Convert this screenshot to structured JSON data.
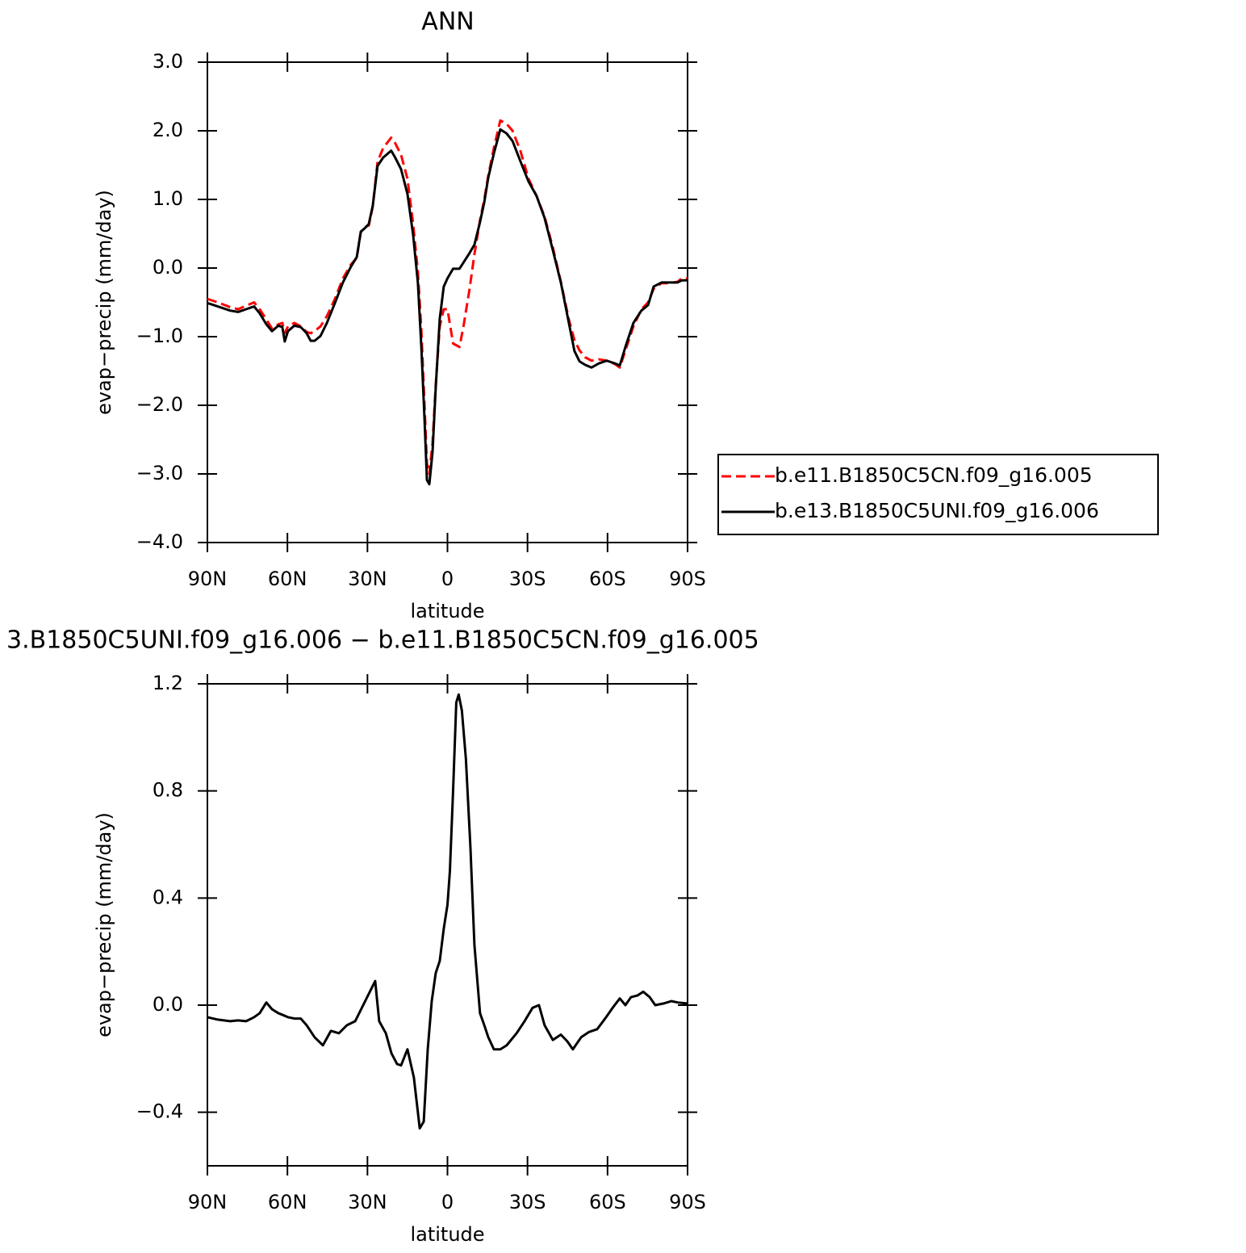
{
  "chart_data": [
    {
      "type": "line",
      "title": "ANN",
      "xlabel": "latitude",
      "ylabel": "evap−precip (mm/day)",
      "x": [
        90,
        86.1,
        81.5,
        78.5,
        75.5,
        72.5,
        70.4,
        67.9,
        65.8,
        63.4,
        61.9,
        61.0,
        59.8,
        57.4,
        55.0,
        52.8,
        51.3,
        49.8,
        47.6,
        45.2,
        42.2,
        39.2,
        36.2,
        34.0,
        32.5,
        31.0,
        29.5,
        28.0,
        26.2,
        24.1,
        21.1,
        19.6,
        17.4,
        15.0,
        12.9,
        11.1,
        9.8,
        8.6,
        7.7,
        6.8,
        5.6,
        4.4,
        2.9,
        1.4,
        0,
        -2.1,
        -4.5,
        -6.0,
        -8.3,
        -10.1,
        -12.2,
        -13.8,
        -15.3,
        -17.4,
        -19.8,
        -22.2,
        -24.4,
        -27.4,
        -30.4,
        -33.4,
        -36.4,
        -39.5,
        -42.5,
        -45.5,
        -47.6,
        -49.5,
        -51.6,
        -54.0,
        -56.7,
        -59.7,
        -62.8,
        -64.6,
        -66.7,
        -69.7,
        -72.7,
        -75.2,
        -77.3,
        -80.3,
        -83.3,
        -86.3,
        -87.8,
        -90
      ],
      "series": [
        {
          "name": "b.e11.B1850C5CN.f09_g16.005",
          "color": "#ff0000",
          "dash": "dashed",
          "values": [
            -0.45,
            -0.5,
            -0.57,
            -0.6,
            -0.55,
            -0.5,
            -0.6,
            -0.75,
            -0.88,
            -0.82,
            -0.8,
            -0.95,
            -0.85,
            -0.8,
            -0.85,
            -0.93,
            -0.95,
            -0.92,
            -0.85,
            -0.7,
            -0.45,
            -0.15,
            0.05,
            0.15,
            0.52,
            0.6,
            0.62,
            0.9,
            1.55,
            1.75,
            1.9,
            1.82,
            1.65,
            1.3,
            0.65,
            -0.05,
            -0.9,
            -2.0,
            -2.85,
            -3.0,
            -2.55,
            -1.7,
            -0.85,
            -0.6,
            -0.6,
            -1.1,
            -1.15,
            -0.85,
            -0.3,
            0.2,
            0.7,
            1.0,
            1.35,
            1.75,
            2.15,
            2.1,
            2.0,
            1.7,
            1.3,
            1.05,
            0.75,
            0.3,
            -0.2,
            -0.75,
            -1.05,
            -1.2,
            -1.3,
            -1.35,
            -1.33,
            -1.35,
            -1.4,
            -1.45,
            -1.2,
            -0.85,
            -0.6,
            -0.5,
            -0.3,
            -0.22,
            -0.22,
            -0.2,
            -0.15,
            -0.15
          ]
        },
        {
          "name": "b.e13.B1850C5UNI.f09_g16.006",
          "color": "#000000",
          "dash": "solid",
          "values": [
            -0.51,
            -0.56,
            -0.62,
            -0.64,
            -0.6,
            -0.56,
            -0.66,
            -0.82,
            -0.92,
            -0.84,
            -0.86,
            -1.07,
            -0.92,
            -0.84,
            -0.86,
            -0.95,
            -1.06,
            -1.06,
            -0.99,
            -0.8,
            -0.51,
            -0.21,
            0.02,
            0.16,
            0.53,
            0.58,
            0.64,
            0.91,
            1.49,
            1.61,
            1.71,
            1.61,
            1.44,
            1.08,
            0.49,
            -0.21,
            -1.15,
            -2.21,
            -3.09,
            -3.15,
            -2.68,
            -1.74,
            -0.74,
            -0.27,
            -0.15,
            -0.01,
            -0.01,
            0.08,
            0.22,
            0.34,
            0.67,
            0.96,
            1.32,
            1.67,
            2.02,
            1.96,
            1.85,
            1.55,
            1.26,
            1.05,
            0.73,
            0.26,
            -0.21,
            -0.8,
            -1.21,
            -1.36,
            -1.41,
            -1.45,
            -1.39,
            -1.35,
            -1.39,
            -1.42,
            -1.15,
            -0.8,
            -0.62,
            -0.54,
            -0.27,
            -0.21,
            -0.21,
            -0.21,
            -0.18,
            -0.18
          ]
        }
      ],
      "xlim": [
        90,
        -90
      ],
      "xticks": [
        {
          "value": 90,
          "label": "90N"
        },
        {
          "value": 60,
          "label": "60N"
        },
        {
          "value": 30,
          "label": "30N"
        },
        0,
        {
          "value": -30,
          "label": "30S"
        },
        {
          "value": -60,
          "label": "60S"
        },
        {
          "value": -90,
          "label": "90S"
        }
      ],
      "ylim": [
        -4,
        3
      ],
      "yticks": [
        {
          "value": 3,
          "label": "3.0"
        },
        {
          "value": 2,
          "label": "2.0"
        },
        {
          "value": 1,
          "label": "1.0"
        },
        {
          "value": 0,
          "label": "0.0"
        },
        {
          "value": -1,
          "label": "−1.0"
        },
        {
          "value": -2,
          "label": "−2.0"
        },
        {
          "value": -3,
          "label": "−3.0"
        },
        {
          "value": -4,
          "label": "−4.0"
        }
      ],
      "legend": "right"
    },
    {
      "type": "line",
      "title": "3.B1850C5UNI.f09_g16.006 − b.e11.B1850C5CN.f09_g16.005",
      "xlabel": "latitude",
      "ylabel": "evap−precip (mm/day)",
      "x": [
        90,
        86.1,
        81.5,
        78.5,
        75.5,
        72.5,
        70.4,
        67.9,
        65.8,
        63.4,
        61.9,
        59.8,
        57.4,
        55.0,
        52.8,
        49.8,
        46.7,
        43.7,
        40.7,
        37.7,
        34.6,
        31.6,
        28.6,
        27.1,
        25.6,
        23.1,
        21.0,
        18.9,
        17.4,
        15.0,
        12.6,
        10.4,
        8.9,
        7.4,
        5.9,
        4.4,
        2.9,
        1.4,
        0,
        -0.9,
        -2.1,
        -3.3,
        -4.2,
        -5.4,
        -6.9,
        -8.6,
        -10.1,
        -12.2,
        -13.8,
        -15.3,
        -17.4,
        -19.8,
        -22.2,
        -25.9,
        -28.9,
        -31.9,
        -34.3,
        -36.4,
        -39.5,
        -42.5,
        -44.9,
        -47.0,
        -50.1,
        -53.1,
        -56.1,
        -59.1,
        -62.2,
        -64.6,
        -66.7,
        -68.8,
        -71.2,
        -73.4,
        -75.8,
        -77.9,
        -80.9,
        -83.9,
        -86.3,
        -90
      ],
      "series": [
        {
          "color": "#000000",
          "dash": "solid",
          "values": [
            -0.045,
            -0.054,
            -0.06,
            -0.057,
            -0.06,
            -0.045,
            -0.03,
            0.01,
            -0.015,
            -0.03,
            -0.036,
            -0.045,
            -0.05,
            -0.05,
            -0.075,
            -0.12,
            -0.15,
            -0.096,
            -0.105,
            -0.075,
            -0.06,
            0.0,
            0.06,
            0.09,
            -0.06,
            -0.105,
            -0.18,
            -0.22,
            -0.225,
            -0.165,
            -0.27,
            -0.46,
            -0.435,
            -0.165,
            0.015,
            0.12,
            0.165,
            0.285,
            0.375,
            0.5,
            0.8,
            1.13,
            1.16,
            1.1,
            0.92,
            0.59,
            0.225,
            -0.03,
            -0.075,
            -0.12,
            -0.165,
            -0.165,
            -0.15,
            -0.105,
            -0.06,
            -0.01,
            0.0,
            -0.075,
            -0.13,
            -0.11,
            -0.135,
            -0.165,
            -0.12,
            -0.1,
            -0.09,
            -0.05,
            -0.006,
            0.025,
            0.0,
            0.03,
            0.036,
            0.05,
            0.03,
            0.0,
            0.006,
            0.015,
            0.01,
            0.006
          ]
        }
      ],
      "xlim": [
        90,
        -90
      ],
      "xticks": [
        {
          "value": 90,
          "label": "90N"
        },
        {
          "value": 60,
          "label": "60N"
        },
        {
          "value": 30,
          "label": "30N"
        },
        0,
        {
          "value": -30,
          "label": "30S"
        },
        {
          "value": -60,
          "label": "60S"
        },
        {
          "value": -90,
          "label": "90S"
        }
      ],
      "ylim": [
        -0.6,
        1.2
      ],
      "yticks": [
        1.2,
        0.8,
        0.4,
        {
          "value": 0,
          "label": "0.0"
        },
        {
          "value": -0.4,
          "label": "−0.4"
        }
      ]
    }
  ]
}
